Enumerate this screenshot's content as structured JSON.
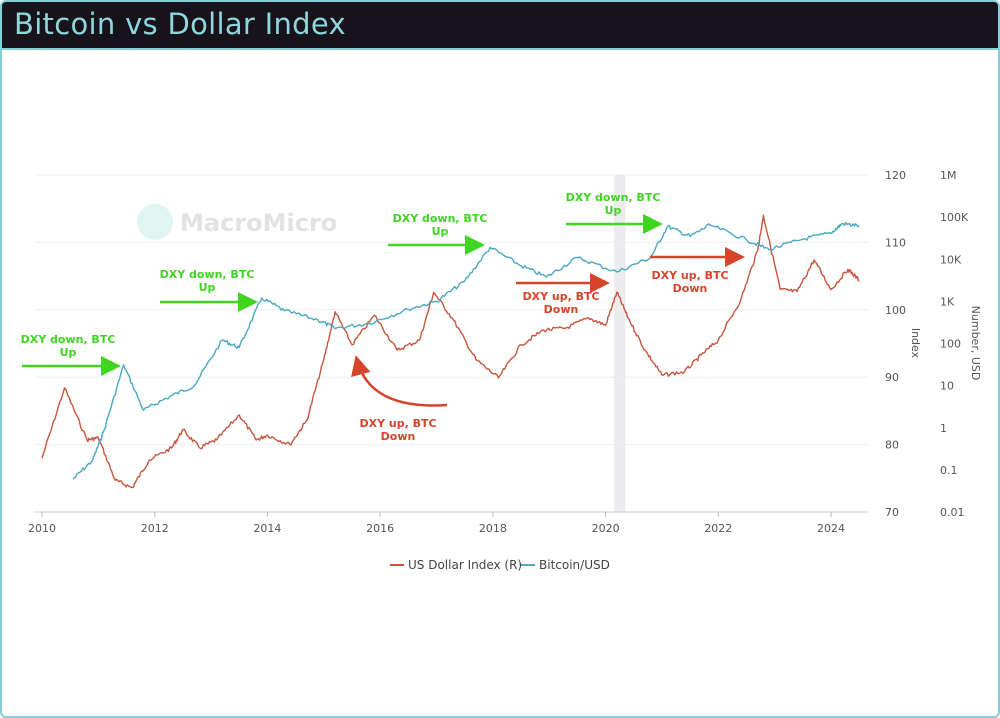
{
  "header": {
    "title": "Bitcoin vs Dollar Index"
  },
  "watermark": "MacroMicro",
  "colors": {
    "dxy": "#c9553c",
    "btc": "#4ba8c2",
    "annotation_up": "#3fd520",
    "annotation_down": "#d6452a",
    "header_bg": "#17131b",
    "title": "#8fd6dc"
  },
  "chart_data": {
    "type": "line",
    "x_ticks": [
      "2010",
      "2012",
      "2014",
      "2016",
      "2018",
      "2020",
      "2022",
      "2024"
    ],
    "xlim": [
      2009.95,
      2024.65
    ],
    "left_axis": {
      "label": "Index",
      "ylim": [
        70,
        120
      ],
      "ticks": [
        "70",
        "80",
        "90",
        "100",
        "110",
        "120"
      ]
    },
    "right_axis": {
      "label": "Number, USD",
      "scale": "log",
      "ylim": [
        0.01,
        1000000
      ],
      "ticks": [
        "0.01",
        "0.1",
        "1",
        "10",
        "100",
        "1K",
        "10K",
        "100K",
        "1M"
      ]
    },
    "grid": true,
    "legend_position": "bottom",
    "shaded_period": [
      2020.15,
      2020.35
    ],
    "series": [
      {
        "name": "US Dollar Index (R)",
        "axis": "left",
        "x": [
          2010.0,
          2010.4,
          2010.8,
          2011.0,
          2011.3,
          2011.6,
          2011.9,
          2012.3,
          2012.5,
          2012.8,
          2013.1,
          2013.5,
          2013.8,
          2014.0,
          2014.4,
          2014.7,
          2015.0,
          2015.2,
          2015.5,
          2015.9,
          2016.3,
          2016.7,
          2016.95,
          2017.3,
          2017.7,
          2018.1,
          2018.5,
          2018.9,
          2019.3,
          2019.7,
          2020.0,
          2020.2,
          2020.4,
          2020.7,
          2021.0,
          2021.4,
          2021.7,
          2022.0,
          2022.4,
          2022.7,
          2022.8,
          2023.1,
          2023.4,
          2023.7,
          2024.0,
          2024.3,
          2024.5
        ],
        "y": [
          78,
          88.4,
          80.7,
          81,
          74.7,
          73.6,
          77.7,
          79.5,
          82.2,
          79.5,
          80.7,
          84.4,
          80.7,
          81.4,
          80,
          83.6,
          92.6,
          99.7,
          94.8,
          99.2,
          94,
          95.5,
          102.6,
          98.5,
          92.6,
          89.9,
          94.8,
          97,
          97.3,
          98.8,
          97.7,
          102.6,
          98.8,
          94,
          90.3,
          90.8,
          93.3,
          95.5,
          101.5,
          108.9,
          114,
          103,
          102.7,
          107.4,
          103,
          106,
          104.4
        ]
      },
      {
        "name": "Bitcoin/USD",
        "axis": "right",
        "x": [
          2010.55,
          2010.9,
          2011.1,
          2011.45,
          2011.8,
          2012.2,
          2012.7,
          2013.2,
          2013.5,
          2013.9,
          2014.3,
          2014.9,
          2015.2,
          2015.8,
          2016.5,
          2017.0,
          2017.5,
          2017.95,
          2018.5,
          2018.95,
          2019.5,
          2020.2,
          2020.8,
          2021.1,
          2021.5,
          2021.85,
          2022.5,
          2022.9,
          2023.5,
          2024.0,
          2024.2,
          2024.5
        ],
        "y": [
          0.06,
          0.17,
          0.87,
          31,
          2.6,
          5,
          10,
          120,
          80,
          1200,
          600,
          360,
          230,
          300,
          650,
          1000,
          3000,
          19000,
          7000,
          3800,
          11000,
          5000,
          11000,
          60000,
          35000,
          65000,
          29000,
          17000,
          30000,
          42000,
          70000,
          62000
        ]
      }
    ],
    "annotations": [
      {
        "text": [
          "DXY down, BTC",
          "Up"
        ],
        "type": "up"
      },
      {
        "text": [
          "DXY down, BTC",
          "Up"
        ],
        "type": "up"
      },
      {
        "text": [
          "DXY down, BTC",
          "Up"
        ],
        "type": "up"
      },
      {
        "text": [
          "DXY down, BTC",
          "Up"
        ],
        "type": "up"
      },
      {
        "text": [
          "DXY up, BTC",
          "Down"
        ],
        "type": "down"
      },
      {
        "text": [
          "DXY up, BTC",
          "Down"
        ],
        "type": "down"
      },
      {
        "text": [
          "DXY up, BTC",
          "Down"
        ],
        "type": "down"
      }
    ]
  }
}
